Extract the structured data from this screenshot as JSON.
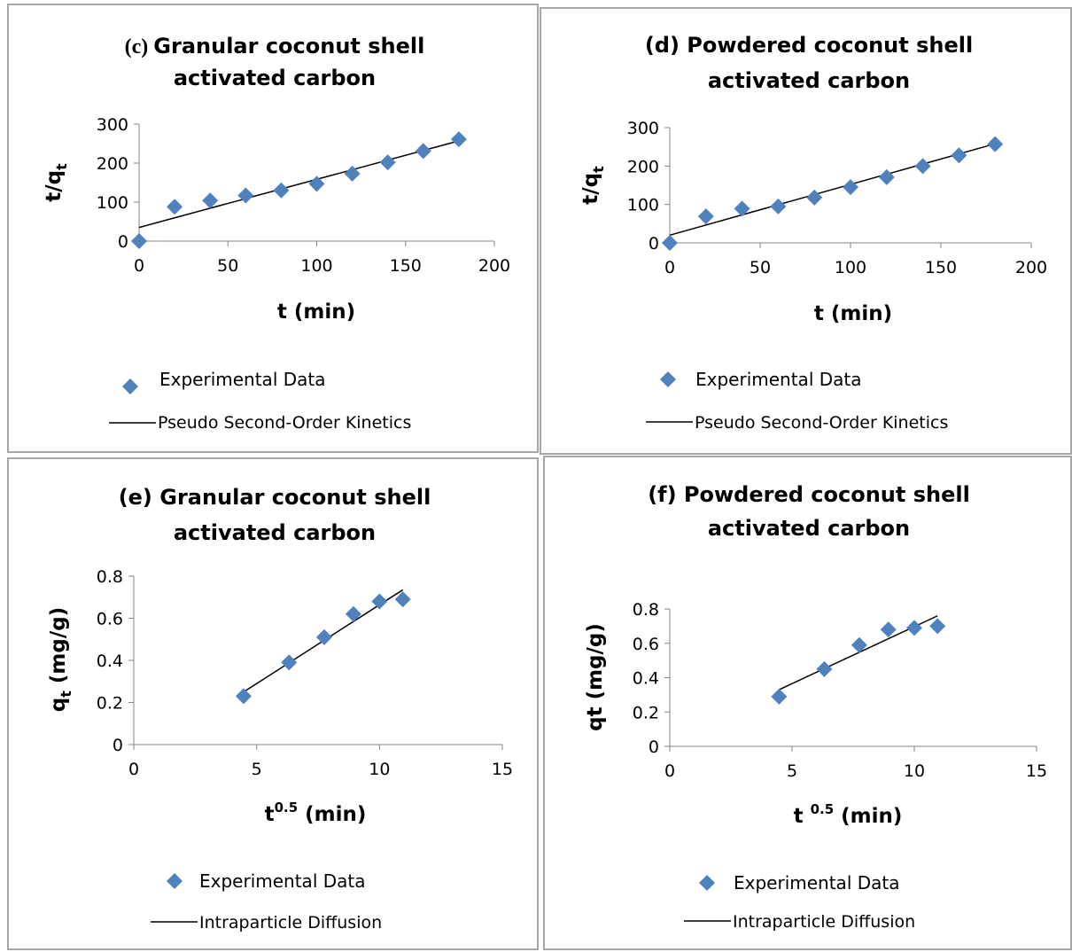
{
  "chart_data": [
    {
      "type": "scatter",
      "panel_letter": "(c)",
      "title_line1": "Granular coconut shell",
      "title_line2": "activated carbon",
      "xlabel": "t (min)",
      "ylabel_main": "t/q",
      "ylabel_sub": "t",
      "xlim": [
        0,
        200
      ],
      "ylim": [
        0,
        300
      ],
      "xticks": [
        "0",
        "50",
        "100",
        "150",
        "200"
      ],
      "yticks": [
        "0",
        "100",
        "200",
        "300"
      ],
      "points": [
        [
          0,
          0
        ],
        [
          20,
          88
        ],
        [
          40,
          104
        ],
        [
          60,
          117
        ],
        [
          80,
          130
        ],
        [
          100,
          147
        ],
        [
          120,
          173
        ],
        [
          140,
          202
        ],
        [
          160,
          231
        ],
        [
          180,
          261
        ]
      ],
      "fit_line": [
        [
          0,
          35
        ],
        [
          180,
          257
        ]
      ],
      "legend_marker": "Experimental Data",
      "legend_line": "Pseudo Second-Order Kinetics",
      "marker_color": "#4f81bd"
    },
    {
      "type": "scatter",
      "panel_letter": "",
      "title_line1": "(d) Powdered coconut shell",
      "title_line2": "activated carbon",
      "xlabel": "t (min)",
      "ylabel_main": "t/q",
      "ylabel_sub": "t",
      "xlim": [
        0,
        200
      ],
      "ylim": [
        0,
        300
      ],
      "xticks": [
        "0",
        "50",
        "100",
        "150",
        "200"
      ],
      "yticks": [
        "0",
        "100",
        "200",
        "300"
      ],
      "points": [
        [
          0,
          0
        ],
        [
          20,
          69
        ],
        [
          40,
          89
        ],
        [
          60,
          95
        ],
        [
          80,
          118
        ],
        [
          100,
          145
        ],
        [
          120,
          171
        ],
        [
          140,
          200
        ],
        [
          160,
          228
        ],
        [
          180,
          257
        ]
      ],
      "fit_line": [
        [
          0,
          20
        ],
        [
          180,
          258
        ]
      ],
      "legend_marker": "Experimental Data",
      "legend_line": "Pseudo Second-Order Kinetics",
      "marker_color": "#4f81bd"
    },
    {
      "type": "scatter",
      "panel_letter": "",
      "title_line1": "(e) Granular coconut shell",
      "title_line2": "activated carbon",
      "xlabel_main": "t",
      "xlabel_sup": "0.5",
      "xlabel_rest": " (min)",
      "ylabel_main": "q",
      "ylabel_sub": "t",
      "ylabel_rest": " (mg/g)",
      "xlim": [
        0,
        15
      ],
      "ylim": [
        0,
        0.8
      ],
      "xticks": [
        "0",
        "5",
        "10",
        "15"
      ],
      "yticks": [
        "0",
        "0.2",
        "0.4",
        "0.6",
        "0.8"
      ],
      "points": [
        [
          4.47,
          0.23
        ],
        [
          6.32,
          0.39
        ],
        [
          7.75,
          0.51
        ],
        [
          8.94,
          0.62
        ],
        [
          10.0,
          0.68
        ],
        [
          10.95,
          0.69
        ]
      ],
      "fit_line": [
        [
          4.47,
          0.25
        ],
        [
          10.95,
          0.735
        ]
      ],
      "legend_marker": "Experimental Data",
      "legend_line": "Intraparticle Diffusion",
      "marker_color": "#4f81bd"
    },
    {
      "type": "scatter",
      "panel_letter": "",
      "title_line1": "(f) Powdered coconut shell",
      "title_line2": "activated carbon",
      "xlabel_main": "t ",
      "xlabel_sup": "0.5",
      "xlabel_rest": " (min)",
      "ylabel_main": "qt (mg/g)",
      "xlim": [
        0,
        15
      ],
      "ylim": [
        0,
        0.8
      ],
      "xticks": [
        "0",
        "5",
        "10",
        "15"
      ],
      "yticks": [
        "0",
        "0.2",
        "0.4",
        "0.6",
        "0.8"
      ],
      "points": [
        [
          4.47,
          0.29
        ],
        [
          6.32,
          0.45
        ],
        [
          7.75,
          0.59
        ],
        [
          8.94,
          0.68
        ],
        [
          10.0,
          0.69
        ],
        [
          10.95,
          0.7
        ]
      ],
      "fit_line": [
        [
          4.47,
          0.33
        ],
        [
          10.95,
          0.76
        ]
      ],
      "legend_marker": "Experimental Data",
      "legend_line": "Intraparticle Diffusion",
      "marker_color": "#4f81bd"
    }
  ]
}
